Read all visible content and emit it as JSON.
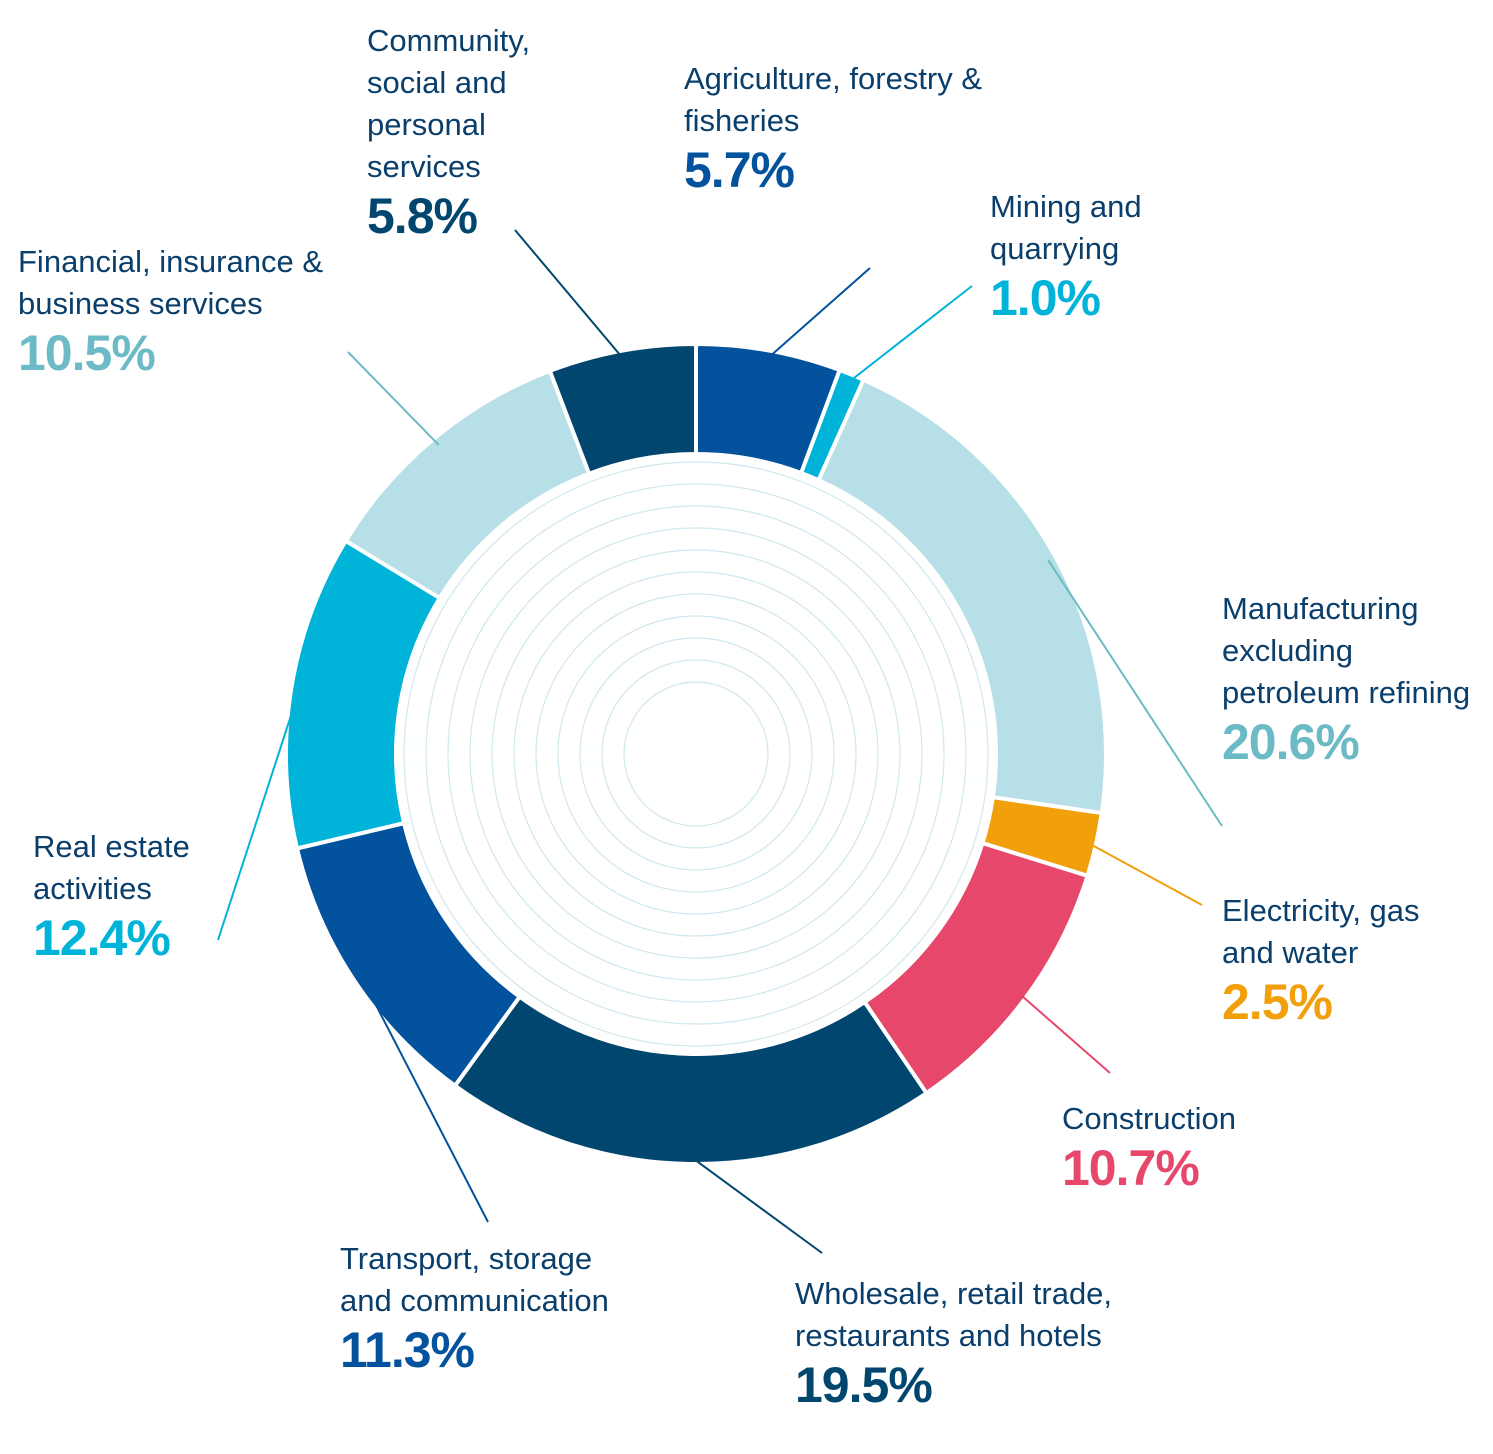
{
  "chart_data": {
    "type": "donut",
    "categories": [
      "Agriculture, forestry & fisheries",
      "Mining and quarrying",
      "Manufacturing excluding petroleum refining",
      "Electricity, gas and water",
      "Construction",
      "Wholesale, retail trade, restaurants and hotels",
      "Transport, storage and communication",
      "Real estate activities",
      "Financial, insurance & business services",
      "Community, social and personal services"
    ],
    "values": [
      5.7,
      1.0,
      20.6,
      2.5,
      10.7,
      19.5,
      11.3,
      12.4,
      10.5,
      5.8
    ],
    "value_labels": [
      "5.7%",
      "1.0%",
      "20.6%",
      "2.5%",
      "10.7%",
      "19.5%",
      "11.3%",
      "12.4%",
      "10.5%",
      "5.8%"
    ],
    "colors": [
      "#03529e",
      "#00b3d9",
      "#b7dfe7",
      "#f29f0c",
      "#e6476b",
      "#00466f",
      "#03529e",
      "#00b3d9",
      "#b7dfe7",
      "#00466f"
    ],
    "label_colors": [
      "#03529e",
      "#00b3d9",
      "#6cbac6",
      "#f29f0c",
      "#e6476b",
      "#00466f",
      "#03529e",
      "#00b3d9",
      "#6cbac6",
      "#00466f"
    ]
  }
}
